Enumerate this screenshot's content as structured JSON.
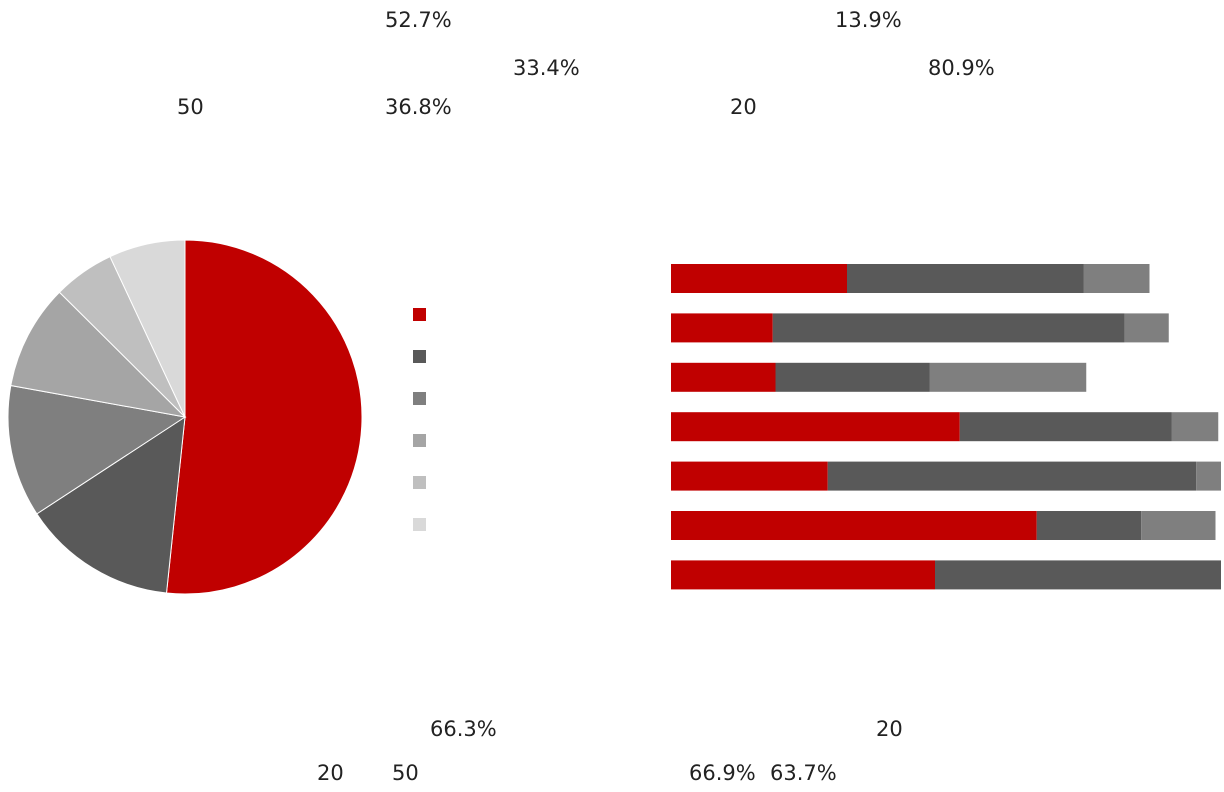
{
  "labels": {
    "top_a": "52.7%",
    "top_b": "13.9%",
    "top_c": "33.4%",
    "top_d": "80.9%",
    "top_e": "50",
    "top_f": "36.8%",
    "top_g": "20",
    "bottom_a": "66.3%",
    "bottom_b": "20",
    "bottom_c": "20",
    "bottom_d": "50",
    "bottom_e": "66.9%",
    "bottom_f": "63.7%"
  },
  "chart_data": [
    {
      "type": "pie",
      "values": [
        52.7,
        14.4,
        12.3,
        9.8,
        5.7,
        7.1
      ],
      "colors": [
        "#c00000",
        "#595959",
        "#7f7f7f",
        "#a5a5a5",
        "#bfbfbf",
        "#d9d9d9"
      ],
      "start_angle": "12 o'clock",
      "direction": "clockwise"
    },
    {
      "type": "bar",
      "orientation": "horizontal",
      "stacked": true,
      "rows": 7,
      "series": [
        {
          "values": [
            32,
            18.5,
            19,
            52.5,
            28.5,
            66.5,
            48
          ],
          "color": "#c00000"
        },
        {
          "values": [
            43,
            64,
            28,
            38.5,
            67,
            19,
            52
          ],
          "color": "#595959"
        },
        {
          "values": [
            12,
            8,
            28.5,
            8.5,
            4.5,
            13.5,
            0
          ],
          "color": "#7f7f7f"
        }
      ]
    }
  ]
}
